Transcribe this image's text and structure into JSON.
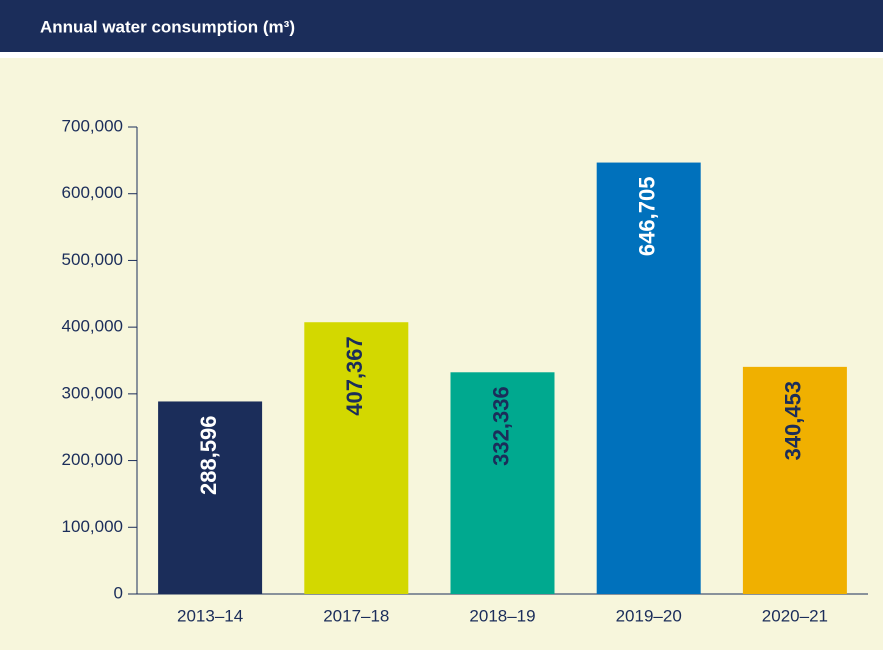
{
  "chart_data": {
    "type": "bar",
    "title": "Annual water consumption (m³)",
    "categories": [
      "2013–14",
      "2017–18",
      "2018–19",
      "2019–20",
      "2020–21"
    ],
    "values": [
      288596,
      407367,
      332336,
      646705,
      340453
    ],
    "value_labels": [
      "288,596",
      "407,367",
      "332,336",
      "646,705",
      "340,453"
    ],
    "colors": [
      "#1b2d5a",
      "#d3d800",
      "#00a98f",
      "#0071bc",
      "#f0b000"
    ],
    "ylim": [
      0,
      700000
    ],
    "yticks": [
      0,
      {
        "value": 100000,
        "label": "100,000"
      },
      {
        "value": 200000,
        "label": "200,000"
      },
      {
        "value": 300000,
        "label": "300,000"
      },
      {
        "value": 400000,
        "label": "400,000"
      },
      {
        "value": 500000,
        "label": "500,000"
      },
      {
        "value": 600000,
        "label": "600,000"
      },
      {
        "value": 700000,
        "label": "700,000"
      }
    ]
  }
}
